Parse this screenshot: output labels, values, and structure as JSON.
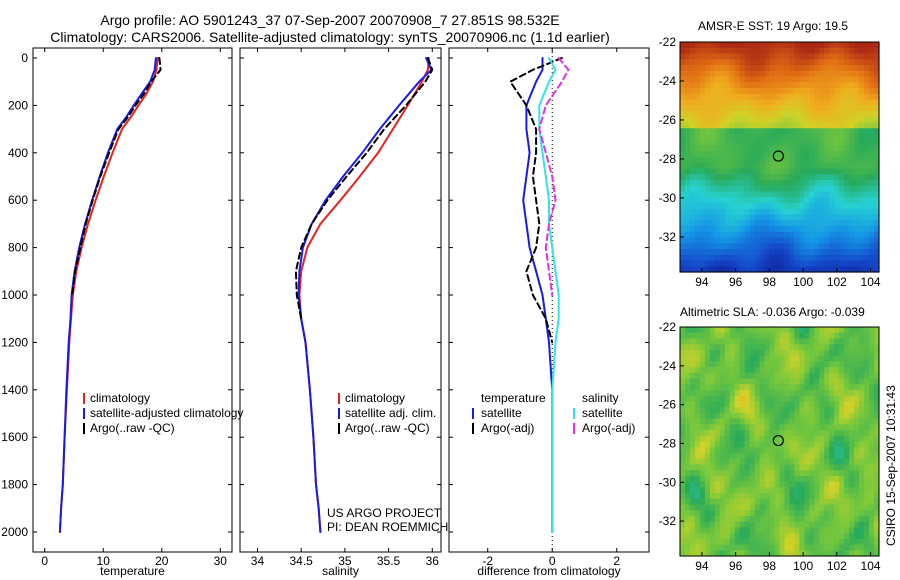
{
  "title_line1": "Argo profile: AO 5901243_37 07-Sep-2007 20070908_7 27.851S 98.532E",
  "title_line2": "Climatology: CARS2006. Satellite-adjusted climatology: synTS_20070906.nc (1.1d earlier)",
  "side_note": "CSIRO 15-Sep-2007 10:31:43",
  "annotation_project": "US ARGO PROJECT",
  "annotation_pi": "PI: DEAN ROEMMICH",
  "colors": {
    "climatology": "#e8221e",
    "satellite": "#1a1ae6",
    "argo": "#000000",
    "sal_satellite": "#2ee6e6",
    "sal_argo": "#e62ee6"
  },
  "chart_data": [
    {
      "type": "line",
      "id": "temperature",
      "xlabel": "temperature",
      "ylabel": "",
      "xlim": [
        -2,
        32
      ],
      "ylim": [
        2050,
        0
      ],
      "y_reversed": true,
      "xticks": [
        0,
        10,
        20,
        30
      ],
      "xtick_labels": [
        "0",
        "10",
        "20",
        "30"
      ],
      "yticks": [
        0,
        200,
        400,
        600,
        800,
        1000,
        1200,
        1400,
        1600,
        1800,
        2000
      ],
      "ytick_labels": [
        "0",
        "200",
        "400",
        "600",
        "800",
        "1000",
        "1200",
        "1400",
        "1600",
        "1800",
        "2000"
      ],
      "legend": [
        "climatology",
        "satellite-adjusted climatology",
        "Argo(..raw -QC)"
      ],
      "legend_position": "lower-right",
      "series": [
        {
          "name": "climatology",
          "color_key": "climatology",
          "style": "solid",
          "x": [
            19.3,
            19.1,
            18.5,
            17.4,
            16.0,
            14.7,
            13.2,
            11.6,
            10.1,
            8.7,
            7.4,
            6.3,
            5.4,
            4.8,
            4.5,
            4.2,
            3.8,
            3.4,
            3.1,
            2.8,
            2.6
          ],
          "depth": [
            0,
            50,
            100,
            150,
            200,
            250,
            300,
            400,
            500,
            600,
            700,
            800,
            900,
            1000,
            1100,
            1200,
            1400,
            1600,
            1800,
            1900,
            2000
          ]
        },
        {
          "name": "satellite",
          "color_key": "satellite",
          "style": "solid",
          "x": [
            19.0,
            18.8,
            18.0,
            16.6,
            15.2,
            13.9,
            12.4,
            10.8,
            9.4,
            8.1,
            6.9,
            5.9,
            5.1,
            4.6,
            4.4,
            4.1,
            3.7,
            3.4,
            3.1,
            2.8,
            2.6
          ],
          "depth": [
            0,
            50,
            100,
            150,
            200,
            250,
            300,
            400,
            500,
            600,
            700,
            800,
            900,
            1000,
            1100,
            1200,
            1400,
            1600,
            1800,
            1900,
            2000
          ]
        },
        {
          "name": "argo",
          "color_key": "argo",
          "style": "dashed",
          "x": [
            19.6,
            19.8,
            18.2,
            17.0,
            15.5,
            14.2,
            12.6,
            11.0,
            9.5,
            8.2,
            7.0,
            6.1,
            5.2,
            4.7
          ],
          "depth": [
            0,
            50,
            100,
            150,
            200,
            250,
            300,
            400,
            500,
            600,
            700,
            800,
            900,
            1000
          ]
        }
      ]
    },
    {
      "type": "line",
      "id": "salinity",
      "xlabel": "salinity",
      "ylabel": "",
      "xlim": [
        33.8,
        36.1
      ],
      "ylim": [
        2050,
        0
      ],
      "y_reversed": true,
      "xticks": [
        34,
        34.5,
        35,
        35.5,
        36
      ],
      "xtick_labels": [
        "34",
        "34.5",
        "35",
        "35.5",
        "36"
      ],
      "legend": [
        "climatology",
        "satellite adj. clim.",
        "Argo(..raw -QC)"
      ],
      "legend_position": "lower-right",
      "series": [
        {
          "name": "climatology",
          "color_key": "climatology",
          "style": "solid",
          "x": [
            35.96,
            35.95,
            35.88,
            35.72,
            35.55,
            35.38,
            35.17,
            34.95,
            34.72,
            34.57,
            34.5,
            34.48,
            34.5,
            34.55,
            34.6,
            34.64,
            34.67,
            34.7,
            34.72
          ],
          "depth": [
            0,
            50,
            100,
            200,
            300,
            400,
            500,
            600,
            700,
            800,
            900,
            1000,
            1100,
            1200,
            1400,
            1600,
            1800,
            1900,
            2000
          ]
        },
        {
          "name": "satellite",
          "color_key": "satellite",
          "style": "solid",
          "x": [
            35.93,
            35.99,
            35.85,
            35.62,
            35.4,
            35.2,
            34.98,
            34.78,
            34.62,
            34.52,
            34.48,
            34.47,
            34.5,
            34.55,
            34.6,
            34.64,
            34.67,
            34.7,
            34.72
          ],
          "depth": [
            0,
            50,
            100,
            200,
            300,
            400,
            500,
            600,
            700,
            800,
            900,
            1000,
            1100,
            1200,
            1400,
            1600,
            1800,
            1900,
            2000
          ]
        },
        {
          "name": "argo",
          "color_key": "argo",
          "style": "dashed",
          "x": [
            35.95,
            36.0,
            35.92,
            35.7,
            35.45,
            35.25,
            35.02,
            34.8,
            34.62,
            34.5,
            34.44,
            34.45,
            34.5
          ],
          "depth": [
            0,
            50,
            100,
            200,
            300,
            400,
            500,
            600,
            700,
            800,
            900,
            1000,
            1100
          ]
        }
      ]
    },
    {
      "type": "line",
      "id": "difference",
      "xlabel": "difference from climatology",
      "ylabel": "",
      "xlim": [
        -3.2,
        3.0
      ],
      "ylim": [
        2050,
        0
      ],
      "y_reversed": true,
      "xticks": [
        -2,
        0,
        2
      ],
      "xtick_labels": [
        "-2",
        "0",
        "2"
      ],
      "legend_left_header": "temperature",
      "legend_right_header": "salinity",
      "legend_left": [
        "satellite",
        "Argo(-adj)"
      ],
      "legend_right": [
        "satellite",
        "Argo(-adj)"
      ],
      "series": [
        {
          "name": "temperature satellite",
          "color_key": "satellite",
          "style": "solid",
          "x": [
            -0.3,
            -0.3,
            -0.5,
            -0.8,
            -0.8,
            -0.7,
            -0.8,
            -0.9,
            -0.8,
            -0.7,
            -0.5,
            -0.3,
            -0.2,
            -0.1,
            0,
            0,
            0,
            0
          ],
          "depth": [
            0,
            50,
            100,
            200,
            300,
            400,
            500,
            600,
            700,
            800,
            900,
            1000,
            1100,
            1200,
            1400,
            1600,
            1800,
            2000
          ]
        },
        {
          "name": "temperature argo",
          "color_key": "argo",
          "style": "dashed",
          "x": [
            0.3,
            -0.6,
            -1.3,
            -0.8,
            -0.5,
            -0.5,
            -0.6,
            -0.5,
            -0.4,
            -0.5,
            -0.8,
            -0.6,
            -0.2,
            0
          ],
          "depth": [
            0,
            50,
            100,
            200,
            300,
            400,
            500,
            600,
            700,
            800,
            900,
            1000,
            1100,
            1200
          ]
        },
        {
          "name": "salinity satellite",
          "color_key": "sal_satellite",
          "style": "solid",
          "x": [
            -0.1,
            0.1,
            -0.1,
            -0.4,
            -0.4,
            -0.3,
            -0.2,
            -0.1,
            -0.1,
            0,
            0.1,
            0.2,
            0.2,
            0.1,
            0,
            0,
            0
          ],
          "depth": [
            0,
            50,
            100,
            200,
            300,
            400,
            500,
            600,
            700,
            800,
            900,
            1000,
            1100,
            1200,
            1400,
            1600,
            2000
          ]
        },
        {
          "name": "salinity argo",
          "color_key": "sal_argo",
          "style": "dashed",
          "x": [
            0.2,
            0.5,
            0.3,
            -0.2,
            -0.4,
            -0.2,
            0,
            0.1,
            -0.1,
            -0.2,
            -0.1,
            0
          ],
          "depth": [
            0,
            50,
            100,
            200,
            300,
            400,
            500,
            600,
            700,
            800,
            900,
            1000
          ]
        }
      ]
    },
    {
      "type": "heatmap",
      "id": "sst-map",
      "title": "AMSR-E SST: 19 Argo: 19.5",
      "xlim": [
        92.7,
        104.5
      ],
      "ylim": [
        -33.8,
        -22
      ],
      "xticks": [
        94,
        96,
        98,
        100,
        102,
        104
      ],
      "xtick_labels": [
        "94",
        "96",
        "98",
        "100",
        "102",
        "104"
      ],
      "yticks": [
        -22,
        -24,
        -26,
        -28,
        -30,
        -32
      ],
      "ytick_labels": [
        "-22",
        "-24",
        "-26",
        "-28",
        "-30",
        "-32"
      ],
      "marker": {
        "lon": 98.532,
        "lat": -27.851
      }
    },
    {
      "type": "heatmap",
      "id": "sla-map",
      "title": "Altimetric SLA: -0.036 Argo: -0.039",
      "xlim": [
        92.7,
        104.5
      ],
      "ylim": [
        -33.8,
        -22
      ],
      "xticks": [
        94,
        96,
        98,
        100,
        102,
        104
      ],
      "xtick_labels": [
        "94",
        "96",
        "98",
        "100",
        "102",
        "104"
      ],
      "yticks": [
        -22,
        -24,
        -26,
        -28,
        -30,
        -32
      ],
      "ytick_labels": [
        "-22",
        "-24",
        "-26",
        "-28",
        "-30",
        "-32"
      ],
      "marker": {
        "lon": 98.532,
        "lat": -27.851
      }
    }
  ]
}
